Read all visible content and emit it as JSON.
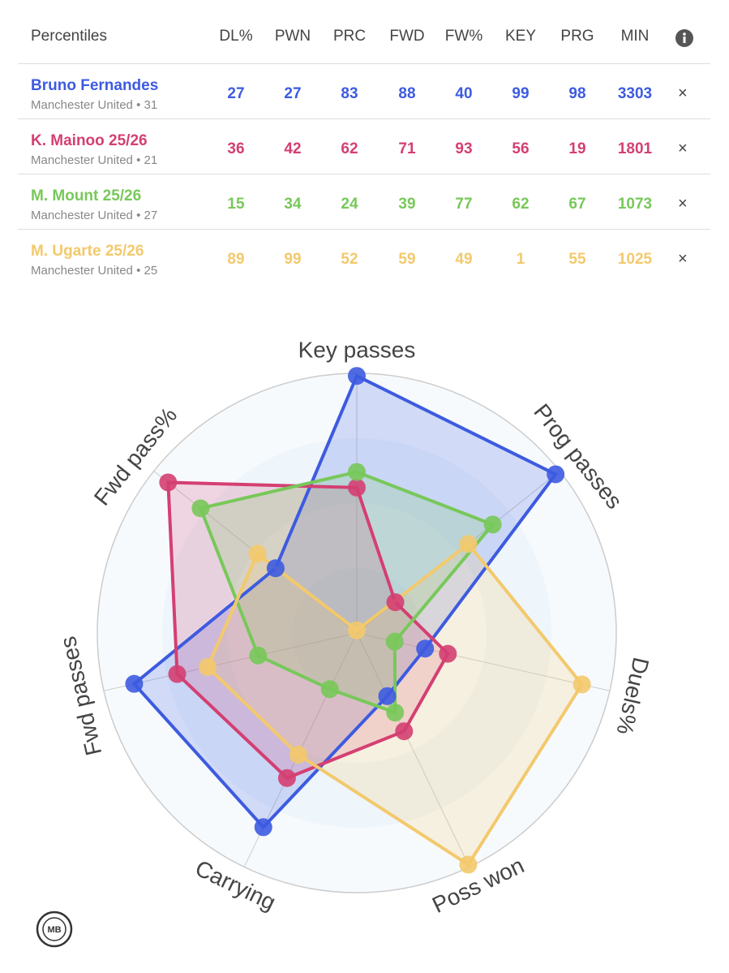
{
  "table": {
    "title": "Percentiles",
    "columns": [
      "DL%",
      "PWN",
      "PRC",
      "FWD",
      "FW%",
      "KEY",
      "PRG",
      "MIN"
    ],
    "rows": [
      {
        "name": "Bruno Fernandes",
        "sub": "Manchester United • 31",
        "color": "#3d5be0",
        "values": [
          27,
          27,
          83,
          88,
          40,
          99,
          98,
          3303
        ]
      },
      {
        "name": "K. Mainoo 25/26",
        "sub": "Manchester United • 21",
        "color": "#d43f72",
        "values": [
          36,
          42,
          62,
          71,
          93,
          56,
          19,
          1801
        ]
      },
      {
        "name": "M. Mount 25/26",
        "sub": "Manchester United • 27",
        "color": "#78c85a",
        "values": [
          15,
          34,
          24,
          39,
          77,
          62,
          67,
          1073
        ]
      },
      {
        "name": "M. Ugarte 25/26",
        "sub": "Manchester United • 25",
        "color": "#f3c96c",
        "values": [
          89,
          99,
          52,
          59,
          49,
          1,
          55,
          1025
        ]
      }
    ]
  },
  "chart_data": {
    "type": "radar",
    "categories": [
      "Key passes",
      "Prog passes",
      "Duels%",
      "Poss won",
      "Carrying",
      "Fwd passes",
      "Fwd pass%"
    ],
    "ylim": [
      0,
      100
    ],
    "yticks": [
      25,
      50,
      75,
      100
    ],
    "series": [
      {
        "name": "Bruno Fernandes",
        "color": "#3d5be0",
        "values": [
          99,
          98,
          27,
          27,
          83,
          88,
          40
        ]
      },
      {
        "name": "K. Mainoo 25/26",
        "color": "#d43f72",
        "values": [
          56,
          19,
          36,
          42,
          62,
          71,
          93
        ]
      },
      {
        "name": "M. Mount 25/26",
        "color": "#78c85a",
        "values": [
          62,
          67,
          15,
          34,
          24,
          39,
          77
        ]
      },
      {
        "name": "M. Ugarte 25/26",
        "color": "#f3c96c",
        "values": [
          1,
          55,
          89,
          99,
          52,
          59,
          49
        ]
      }
    ]
  },
  "logo": "MB"
}
